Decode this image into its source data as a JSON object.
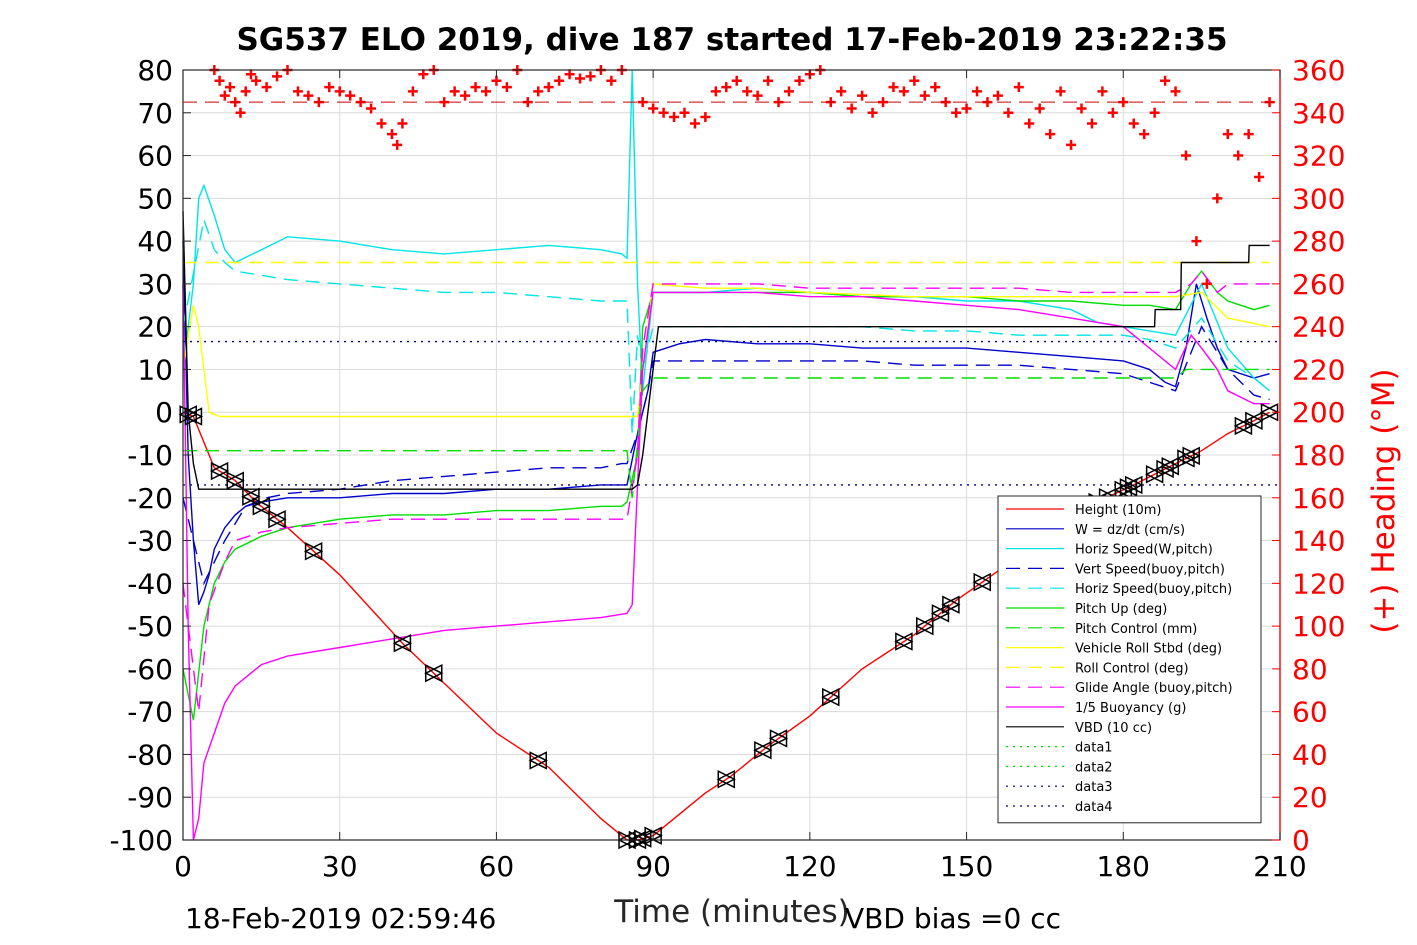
{
  "title": "SG537 ELO 2019, dive 187 started 17-Feb-2019 23:22:35",
  "footer_left": "18-Feb-2019 02:59:46",
  "footer_right": "VBD bias =0 cc",
  "chart_data": {
    "type": "line",
    "xlabel": "Time (minutes)",
    "ylabel": "",
    "y2label": "(+) Heading (°M)",
    "xlim": [
      0,
      210
    ],
    "ylim": [
      -100,
      80
    ],
    "y2lim": [
      0,
      360
    ],
    "xticks": [
      0,
      30,
      60,
      90,
      120,
      150,
      180,
      210
    ],
    "yticks": [
      -100,
      -90,
      -80,
      -70,
      -60,
      -50,
      -40,
      -30,
      -20,
      -10,
      0,
      10,
      20,
      30,
      40,
      50,
      60,
      70,
      80
    ],
    "y2ticks": [
      0,
      20,
      40,
      60,
      80,
      100,
      120,
      140,
      160,
      180,
      200,
      220,
      240,
      260,
      280,
      300,
      320,
      340,
      360
    ],
    "grid": true,
    "legend_position": "bottom-right",
    "colors": {
      "height": "#ff0000",
      "w": "#0000cc",
      "horiz_w": "#00e5e5",
      "vert_buoy": "#0000cc",
      "horiz_buoy": "#00e5e5",
      "pitch": "#00dd00",
      "pitch_ctrl": "#00dd00",
      "roll": "#ffff00",
      "roll_ctrl": "#ffff00",
      "glide": "#ff00ff",
      "buoy": "#ff00ff",
      "vbd": "#000000",
      "heading": "#ff0000"
    },
    "series": [
      {
        "name": "Height (10m)",
        "style": "solid",
        "color": "#ff0000",
        "x": [
          0,
          2,
          6,
          10,
          14,
          20,
          30,
          42,
          48,
          60,
          70,
          80,
          85,
          87,
          90,
          100,
          105,
          112,
          120,
          130,
          140,
          148,
          155,
          165,
          175,
          182,
          190,
          195,
          200,
          205,
          208
        ],
        "y": [
          0,
          -1,
          -13,
          -16,
          -21,
          -27,
          -38,
          -54,
          -61,
          -75,
          -83,
          -95,
          -100,
          -100,
          -99,
          -89,
          -85,
          -78,
          -71,
          -60,
          -52,
          -44,
          -38,
          -29,
          -21,
          -17,
          -12,
          -9,
          -5,
          -2,
          0
        ]
      },
      {
        "name": "W = dz/dt (cm/s)",
        "style": "solid",
        "color": "#0000cc",
        "x": [
          0,
          1,
          2,
          3,
          4,
          5,
          6,
          8,
          10,
          12,
          15,
          20,
          30,
          40,
          50,
          60,
          70,
          80,
          85,
          87,
          89,
          90,
          95,
          100,
          110,
          120,
          130,
          140,
          150,
          160,
          170,
          180,
          185,
          188,
          190,
          192,
          194,
          196,
          198,
          200,
          205,
          208
        ],
        "y": [
          40,
          -10,
          -30,
          -45,
          -42,
          -38,
          -32,
          -27,
          -24,
          -22,
          -21,
          -20,
          -20,
          -19,
          -19,
          -18,
          -18,
          -17,
          -17,
          -5,
          5,
          14,
          16,
          17,
          16,
          16,
          15,
          15,
          15,
          14,
          13,
          12,
          10,
          7,
          6,
          15,
          30,
          22,
          15,
          10,
          8,
          9
        ]
      },
      {
        "name": "Horiz Speed(W,pitch)",
        "style": "solid",
        "color": "#00e5e5",
        "x": [
          0,
          2,
          3,
          4,
          6,
          8,
          10,
          15,
          20,
          30,
          40,
          50,
          60,
          70,
          80,
          84,
          85,
          86,
          87,
          88,
          90,
          100,
          110,
          120,
          130,
          140,
          150,
          160,
          170,
          175,
          180,
          185,
          190,
          195,
          200,
          205,
          208
        ],
        "y": [
          10,
          30,
          50,
          53,
          46,
          38,
          35,
          38,
          41,
          40,
          38,
          37,
          38,
          39,
          38,
          37,
          36,
          80,
          30,
          5,
          28,
          28,
          29,
          28,
          27,
          27,
          26,
          26,
          24,
          21,
          20,
          19,
          18,
          30,
          15,
          8,
          5
        ]
      },
      {
        "name": "Vert Speed(buoy,pitch)",
        "style": "dashed",
        "color": "#0000cc",
        "x": [
          0,
          4,
          8,
          12,
          16,
          20,
          30,
          40,
          50,
          60,
          70,
          80,
          84,
          85,
          87,
          89,
          90,
          100,
          110,
          120,
          130,
          140,
          150,
          160,
          170,
          180,
          185,
          190,
          195,
          200,
          205,
          208
        ],
        "y": [
          -20,
          -40,
          -30,
          -22,
          -20,
          -19,
          -18,
          -16,
          -15,
          -14,
          -13,
          -13,
          -12,
          -12,
          -5,
          5,
          12,
          12,
          12,
          12,
          12,
          11,
          11,
          11,
          10,
          9,
          7,
          5,
          20,
          10,
          4,
          3
        ]
      },
      {
        "name": "Horiz Speed(buoy,pitch)",
        "style": "dashed",
        "color": "#00e5e5",
        "x": [
          0,
          4,
          6,
          8,
          10,
          15,
          20,
          30,
          40,
          50,
          60,
          70,
          80,
          84,
          85,
          86,
          87,
          88,
          90,
          100,
          110,
          120,
          130,
          140,
          150,
          160,
          170,
          180,
          185,
          190,
          195,
          200,
          205,
          208
        ],
        "y": [
          20,
          45,
          38,
          35,
          33,
          32,
          31,
          30,
          29,
          28,
          28,
          27,
          26,
          26,
          26,
          -5,
          18,
          10,
          20,
          20,
          20,
          20,
          20,
          19,
          19,
          18,
          18,
          18,
          17,
          15,
          22,
          12,
          8,
          5
        ]
      },
      {
        "name": "Pitch Up (deg)",
        "style": "solid",
        "color": "#00dd00",
        "x": [
          0,
          2,
          4,
          6,
          8,
          10,
          15,
          20,
          30,
          40,
          50,
          60,
          70,
          80,
          84,
          85,
          87,
          88,
          90,
          100,
          110,
          120,
          130,
          140,
          150,
          160,
          170,
          180,
          185,
          190,
          193,
          195,
          198,
          200,
          205,
          208
        ],
        "y": [
          -60,
          -72,
          -50,
          -40,
          -35,
          -32,
          -29,
          -27,
          -25,
          -24,
          -24,
          -23,
          -23,
          -22,
          -22,
          -21,
          -10,
          20,
          28,
          28,
          28,
          28,
          27,
          27,
          27,
          26,
          26,
          25,
          25,
          24,
          30,
          33,
          28,
          26,
          24,
          25
        ]
      },
      {
        "name": "Pitch Control (mm)",
        "style": "dashed",
        "color": "#00dd00",
        "x": [
          0,
          5,
          10,
          20,
          40,
          60,
          80,
          85,
          86,
          88,
          90,
          100,
          120,
          140,
          160,
          180,
          190,
          192,
          200,
          208
        ],
        "y": [
          -9,
          -9,
          -9,
          -9,
          -9,
          -9,
          -9,
          -9,
          -20,
          5,
          8,
          8,
          8,
          8,
          8,
          8,
          8,
          10,
          10,
          10
        ]
      },
      {
        "name": "Vehicle Roll Stbd (deg)",
        "style": "solid",
        "color": "#ffff00",
        "x": [
          0,
          2,
          3,
          5,
          7,
          10,
          20,
          30,
          40,
          60,
          80,
          85,
          87,
          90,
          100,
          110,
          120,
          140,
          160,
          180,
          190,
          195,
          200,
          208
        ],
        "y": [
          10,
          25,
          20,
          0,
          -1,
          -1,
          -1,
          -1,
          -1,
          -1,
          -1,
          -1,
          -1,
          30,
          29,
          29,
          28,
          27,
          27,
          27,
          27,
          28,
          22,
          20
        ]
      },
      {
        "name": "Roll Control (deg)",
        "style": "dashed",
        "color": "#ffff00",
        "x": [
          0,
          3,
          5,
          10,
          20,
          40,
          60,
          80,
          85,
          87,
          90,
          100,
          120,
          140,
          160,
          180,
          200,
          208
        ],
        "y": [
          35,
          35,
          35,
          35,
          35,
          35,
          35,
          35,
          35,
          35,
          35,
          35,
          35,
          35,
          35,
          35,
          35,
          35
        ]
      },
      {
        "name": "Glide Angle (buoy,pitch)",
        "style": "dashed",
        "color": "#ff00ff",
        "x": [
          0,
          3,
          5,
          8,
          10,
          15,
          20,
          30,
          40,
          50,
          60,
          70,
          80,
          84,
          85,
          87,
          88,
          90,
          100,
          110,
          120,
          130,
          140,
          150,
          160,
          170,
          180,
          185,
          190,
          193,
          195,
          198,
          200,
          205,
          208
        ],
        "y": [
          -40,
          -70,
          -45,
          -35,
          -30,
          -28,
          -27,
          -26,
          -25,
          -25,
          -25,
          -25,
          -25,
          -25,
          -25,
          -10,
          15,
          30,
          30,
          30,
          29,
          29,
          29,
          29,
          29,
          28,
          28,
          28,
          28,
          30,
          33,
          28,
          30,
          30,
          30
        ]
      },
      {
        "name": "1/5 Buoyancy (g)",
        "style": "solid",
        "color": "#ff00ff",
        "x": [
          0,
          1,
          2,
          3,
          4,
          6,
          8,
          10,
          15,
          20,
          30,
          40,
          50,
          60,
          70,
          80,
          85,
          86,
          88,
          90,
          100,
          110,
          120,
          130,
          140,
          150,
          160,
          170,
          180,
          185,
          190,
          193,
          195,
          198,
          200,
          205,
          208
        ],
        "y": [
          30,
          -50,
          -100,
          -95,
          -82,
          -75,
          -68,
          -64,
          -59,
          -57,
          -55,
          -53,
          -51,
          -50,
          -49,
          -48,
          -47,
          -45,
          10,
          28,
          28,
          28,
          27,
          27,
          26,
          25,
          24,
          22,
          20,
          15,
          10,
          18,
          15,
          10,
          5,
          2,
          2
        ]
      },
      {
        "name": "VBD (10 cc)",
        "style": "solid",
        "color": "#000000",
        "x": [
          0,
          1,
          2,
          3,
          10,
          20,
          40,
          60,
          80,
          85,
          86,
          87,
          88,
          89,
          90,
          91,
          100,
          120,
          150,
          170,
          185,
          186,
          186.1,
          190,
          191,
          191.1,
          193,
          193.1,
          200,
          204,
          204.1,
          208
        ],
        "y": [
          47,
          0,
          -12,
          -18,
          -18,
          -18,
          -18,
          -18,
          -18,
          -18,
          -18,
          -17,
          -10,
          0,
          10,
          20,
          20,
          20,
          20,
          20,
          20,
          20,
          24,
          24,
          24,
          35,
          35,
          35,
          35,
          35,
          39,
          39
        ]
      },
      {
        "name": "data1",
        "style": "dotted",
        "color": "#00dd00",
        "x": [],
        "y": []
      },
      {
        "name": "data2",
        "style": "dotted",
        "color": "#00dd00",
        "x": [],
        "y": []
      },
      {
        "name": "data3",
        "style": "dotted",
        "color": "#000080",
        "x": [
          0,
          210
        ],
        "y": [
          16.5,
          16.5
        ]
      },
      {
        "name": "data4",
        "style": "dotted",
        "color": "#000080",
        "x": [
          0,
          210
        ],
        "y": [
          -17,
          -17
        ]
      }
    ],
    "heading_series": {
      "name": "(+) Heading",
      "axis": "right",
      "marker": "+",
      "color": "#ff0000",
      "x": [
        6,
        7,
        8,
        9,
        10,
        11,
        12,
        13,
        14,
        16,
        18,
        20,
        22,
        24,
        26,
        28,
        30,
        32,
        34,
        36,
        38,
        40,
        41,
        42,
        44,
        46,
        48,
        50,
        52,
        54,
        56,
        58,
        60,
        62,
        64,
        66,
        68,
        70,
        72,
        74,
        76,
        78,
        80,
        82,
        84,
        88,
        90,
        92,
        94,
        96,
        98,
        100,
        102,
        104,
        106,
        108,
        110,
        112,
        114,
        116,
        118,
        120,
        122,
        124,
        126,
        128,
        130,
        132,
        134,
        136,
        138,
        140,
        142,
        144,
        146,
        148,
        150,
        152,
        154,
        156,
        158,
        160,
        162,
        164,
        166,
        168,
        170,
        172,
        174,
        176,
        178,
        180,
        182,
        184,
        186,
        188,
        190,
        192,
        194,
        196,
        198,
        200,
        202,
        204,
        206,
        208
      ],
      "y": [
        360,
        355,
        348,
        352,
        345,
        340,
        350,
        358,
        355,
        352,
        357,
        360,
        350,
        348,
        345,
        352,
        350,
        348,
        345,
        342,
        335,
        330,
        325,
        335,
        350,
        358,
        360,
        345,
        350,
        348,
        352,
        350,
        355,
        352,
        360,
        345,
        350,
        352,
        355,
        358,
        356,
        357,
        360,
        355,
        360,
        345,
        342,
        340,
        338,
        340,
        335,
        338,
        350,
        352,
        355,
        350,
        348,
        355,
        345,
        350,
        355,
        358,
        360,
        345,
        350,
        342,
        348,
        340,
        345,
        352,
        350,
        355,
        348,
        352,
        345,
        340,
        342,
        350,
        345,
        348,
        340,
        352,
        335,
        342,
        330,
        350,
        325,
        342,
        335,
        350,
        340,
        345,
        335,
        330,
        340,
        355,
        350,
        320,
        280,
        260,
        300,
        330,
        320,
        330,
        310,
        345
      ]
    },
    "height_markers_x": [
      1,
      2,
      7,
      10,
      13,
      15,
      18,
      25,
      42,
      48,
      68,
      85,
      87,
      88,
      90,
      104,
      111,
      114,
      124,
      138,
      142,
      145,
      147,
      153,
      175,
      177,
      180,
      181,
      182,
      186,
      188,
      189,
      192,
      193,
      203,
      205,
      208
    ]
  }
}
